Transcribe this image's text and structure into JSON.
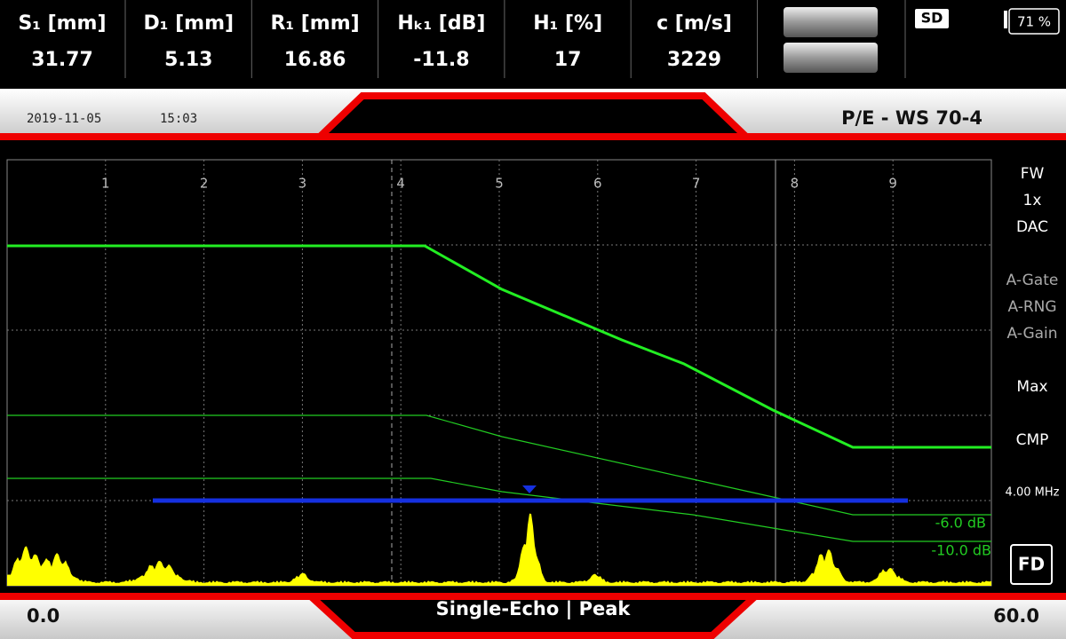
{
  "header": {
    "readings": [
      {
        "label": "S₁ [mm]",
        "value": "31.77"
      },
      {
        "label": "D₁ [mm]",
        "value": "5.13"
      },
      {
        "label": "R₁ [mm]",
        "value": "16.86"
      },
      {
        "label": "Hₖ₁ [dB]",
        "value": "-11.8"
      },
      {
        "label": "H₁ [%]",
        "value": "17"
      },
      {
        "label": "c [m/s]",
        "value": "3229"
      }
    ],
    "sd": "SD",
    "battery": "71 %"
  },
  "status": {
    "date": "2019-11-05",
    "time": "15:03",
    "mode": "P/E - WS 70-4"
  },
  "ascan": {
    "grid_labels": [
      "1",
      "2",
      "3",
      "4",
      "5",
      "6",
      "7",
      "8",
      "9"
    ],
    "curve_labels": [
      "-6.0 dB",
      "-10.0 dB"
    ],
    "side_menu": [
      "FW",
      "1x",
      "DAC",
      "A-Gate",
      "A-RNG",
      "A-Gain",
      "Max",
      "CMP",
      "4.00 MHz"
    ],
    "button": "FD"
  },
  "footer": {
    "start": "0.0",
    "mode": "Single-Echo | Peak",
    "end": "60.0"
  }
}
